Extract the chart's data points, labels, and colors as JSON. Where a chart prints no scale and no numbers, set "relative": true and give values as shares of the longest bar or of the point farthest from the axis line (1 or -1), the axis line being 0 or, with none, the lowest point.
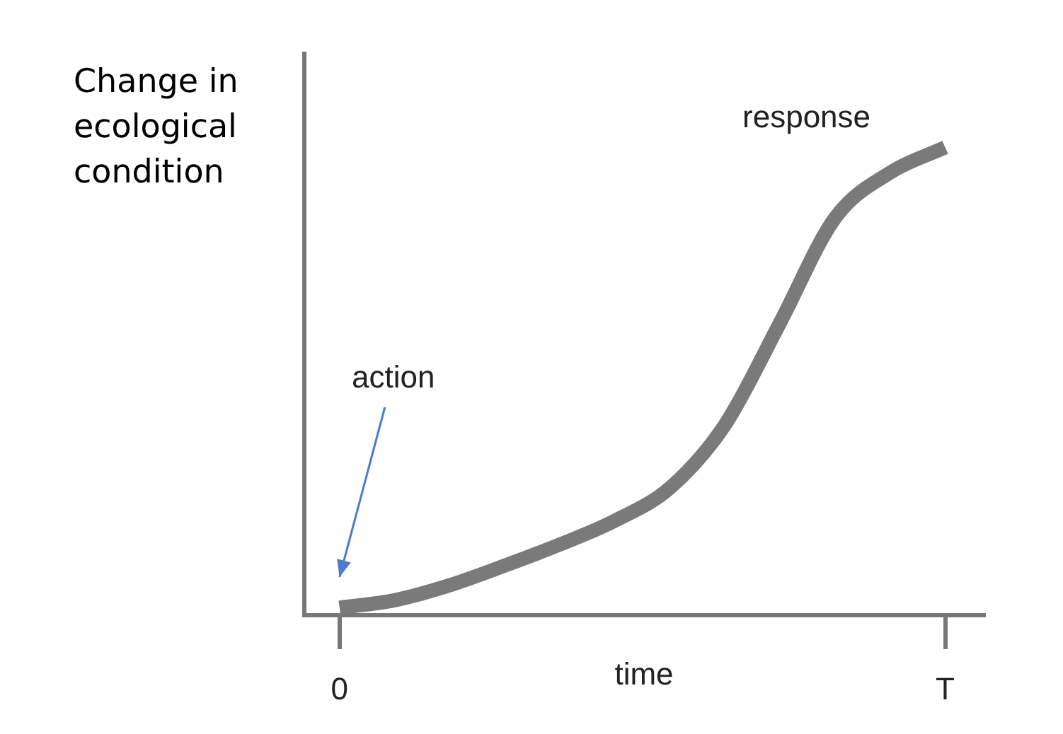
{
  "chart_data": {
    "type": "line",
    "relative": true,
    "ylabel": "Change in\necological\ncondition",
    "xlabel": "time",
    "categories": [
      "0",
      null,
      null,
      null,
      null,
      null,
      null,
      null,
      null,
      null,
      null,
      "T"
    ],
    "series": [
      {
        "name": "response",
        "color": "#7a7a7a",
        "values": [
          0.016,
          0.032,
          0.064,
          0.106,
          0.151,
          0.202,
          0.272,
          0.407,
          0.625,
          0.849,
          0.946,
          1.0
        ]
      }
    ],
    "annotations": [
      "action"
    ],
    "marker": "none",
    "line_style": "solid",
    "grid": false,
    "legend": false
  }
}
